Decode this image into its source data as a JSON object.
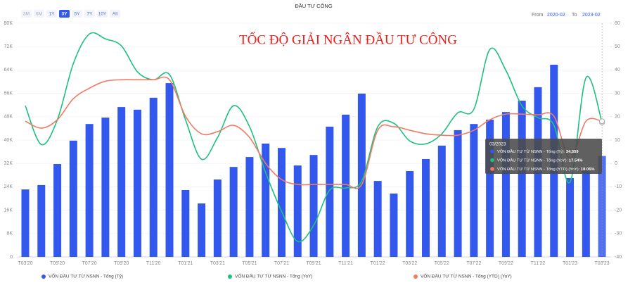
{
  "chart_data": {
    "type": "combo",
    "title": "ĐẦU TƯ CÔNG",
    "annotation": "TỐC ĐỘ GIẢI NGÂN ĐẦU TƯ CÔNG",
    "range_buttons": [
      "3M",
      "6M",
      "1Y",
      "3Y",
      "5Y",
      "7Y",
      "10Y",
      "All"
    ],
    "range_selected": 3,
    "from_label": "From",
    "from": "2020-02",
    "to_label": "To",
    "to": "2023-02",
    "categories": [
      "T03'20",
      null,
      "T05'20",
      null,
      "T07'20",
      null,
      "T09'20",
      null,
      "T11'20",
      null,
      "T01'21",
      null,
      "T03'21",
      null,
      "T05'21",
      null,
      "T07'21",
      null,
      "T09'21",
      null,
      "T11'21",
      null,
      "T01'22",
      null,
      "T03'22",
      null,
      "T05'22",
      null,
      "T07'22",
      null,
      "T09'22",
      null,
      "T11'22",
      null,
      "T01'23",
      null,
      "T03'23"
    ],
    "ylim": [
      0,
      80000
    ],
    "yticks": [
      0,
      {
        "value": 8000,
        "label": "8K"
      },
      {
        "value": 16000,
        "label": "16K"
      },
      {
        "value": 24000,
        "label": "24K"
      },
      {
        "value": 32000,
        "label": "32K"
      },
      {
        "value": 40000,
        "label": "40K"
      },
      {
        "value": 48000,
        "label": "48K"
      },
      {
        "value": 56000,
        "label": "56K"
      },
      {
        "value": 64000,
        "label": "64K"
      },
      {
        "value": 72000,
        "label": "72K"
      },
      {
        "value": 80000,
        "label": "80K"
      }
    ],
    "y2lim": [
      -40,
      60
    ],
    "y2ticks": [
      -40,
      -30,
      -20,
      -10,
      0,
      10,
      20,
      30,
      40,
      50,
      60
    ],
    "grid": true,
    "series": [
      {
        "name": "VỐN ĐẦU TƯ TỪ NSNN - Tổng (Tỷ)",
        "type": "bar",
        "color": "#3358ee",
        "values": [
          23100,
          24600,
          31800,
          39800,
          45500,
          47700,
          51300,
          50400,
          54500,
          59500,
          22900,
          18300,
          26500,
          30800,
          34200,
          38800,
          37300,
          31300,
          34900,
          44600,
          48700,
          55900,
          26000,
          21700,
          29400,
          33500,
          38100,
          43400,
          45500,
          47000,
          49600,
          53500,
          58100,
          65800,
          27000,
          30000,
          34559
        ]
      },
      {
        "name": "VỐN ĐẦU TƯ TỪ NSNN - Tổng (YoY)",
        "type": "line",
        "axis": "y2",
        "color": "#1dc07e",
        "values": [
          24.7,
          8.1,
          18.7,
          42.8,
          55.4,
          53.3,
          50.3,
          39.2,
          35.8,
          38,
          18.7,
          1.8,
          11.1,
          24.7,
          15.7,
          -3.9,
          -20.5,
          -33.4,
          -26.5,
          -11.4,
          -10.5,
          -7.5,
          15.7,
          17.2,
          9.6,
          8.4,
          12.7,
          21.7,
          23.2,
          48.8,
          39.8,
          24.7,
          19.6,
          16.3,
          -8,
          36.7,
          17.54
        ]
      },
      {
        "name": "VỐN ĐẦU TƯ TỪ NSNN - Tổng (YTD) (YoY)",
        "type": "line",
        "axis": "y2",
        "color": "#f27a62",
        "values": [
          18.1,
          15.1,
          18.7,
          27.7,
          32.2,
          35.2,
          35.8,
          35.8,
          35.8,
          35.8,
          20.2,
          12.7,
          13.6,
          16.3,
          11.1,
          0,
          -6.9,
          -9,
          -9,
          -9,
          -9,
          -9,
          14.2,
          15.7,
          14.2,
          12.7,
          12.1,
          12.1,
          14.2,
          18.7,
          21.1,
          21.1,
          20.8,
          20.2,
          2.1,
          18.1,
          18.06
        ]
      }
    ],
    "tooltip": {
      "title": "03/2023",
      "rows": [
        {
          "label": "VỐN ĐẦU TƯ TỪ NSNN - Tổng (Tỷ):",
          "value": 34559,
          "value_label": "34,559"
        },
        {
          "label": "VỐN ĐẦU TƯ TỪ NSNN - Tổng (YoY):",
          "value": 17.54,
          "value_label": "17.54%"
        },
        {
          "label": "VỐN ĐẦU TƯ TỪ NSNN - Tổng (YTD) (YoY):",
          "value": 18.06,
          "value_label": "18.06%"
        }
      ]
    }
  }
}
